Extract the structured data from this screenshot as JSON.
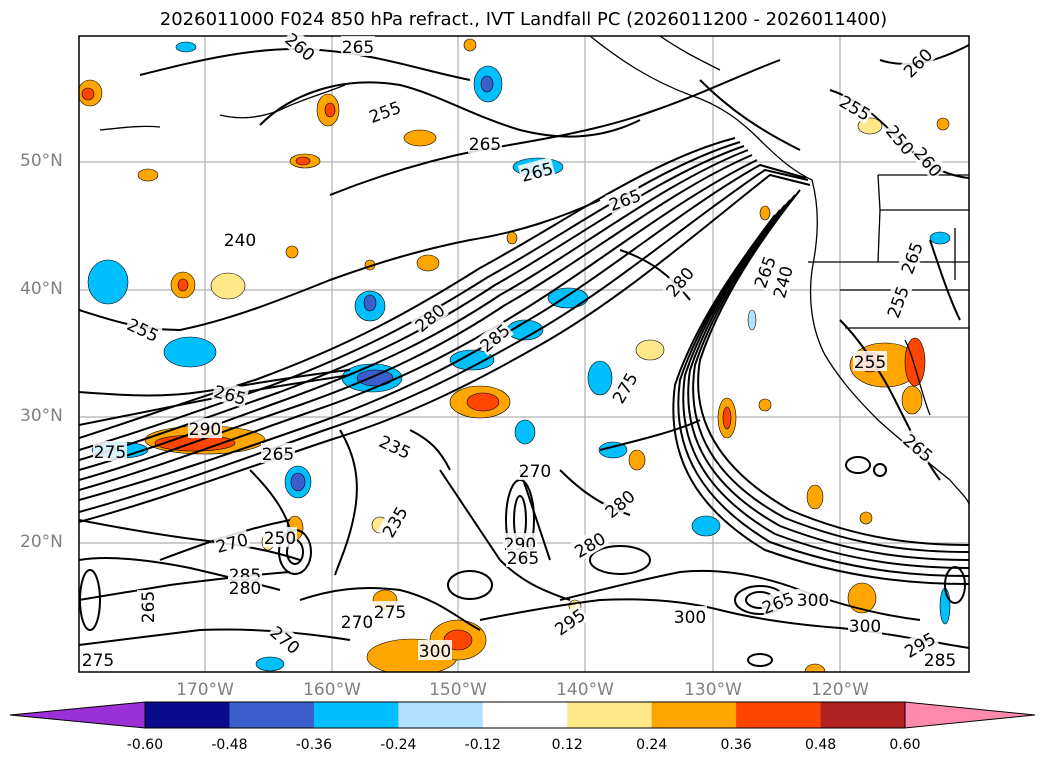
{
  "title": "2026011000 F024 850 hPa refract., IVT Landfall PC (2026011200 - 2026011400)",
  "lat_labels": [
    "50°N",
    "40°N",
    "30°N",
    "20°N"
  ],
  "lon_labels": [
    "170°W",
    "160°W",
    "150°W",
    "140°W",
    "130°W",
    "120°W"
  ],
  "colorbar": {
    "ticks": [
      "-0.60",
      "-0.48",
      "-0.36",
      "-0.24",
      "-0.12",
      "0.12",
      "0.24",
      "0.36",
      "0.48",
      "0.60"
    ],
    "colors": [
      "#9b30d6",
      "#0a0a8c",
      "#3a5fcd",
      "#00bfff",
      "#b0e2ff",
      "#ffffff",
      "#ffe88a",
      "#ffa500",
      "#ff4500",
      "#b22222",
      "#ff8aae"
    ]
  },
  "contour_labels": [
    "260",
    "265",
    "255",
    "265",
    "265",
    "265",
    "260",
    "255",
    "250",
    "260",
    "255",
    "265",
    "265",
    "280",
    "265",
    "240",
    "265",
    "280",
    "285",
    "255",
    "240",
    "275",
    "270",
    "235",
    "255",
    "290",
    "265",
    "275",
    "250",
    "235",
    "270",
    "280",
    "290",
    "265",
    "280",
    "285",
    "280",
    "270",
    "275",
    "265",
    "275",
    "300",
    "295",
    "300",
    "270",
    "265",
    "300",
    "295",
    "285",
    "300"
  ],
  "colors": {
    "contour": "#000000",
    "grid": "#b0b0b0",
    "coast": "#000000"
  }
}
